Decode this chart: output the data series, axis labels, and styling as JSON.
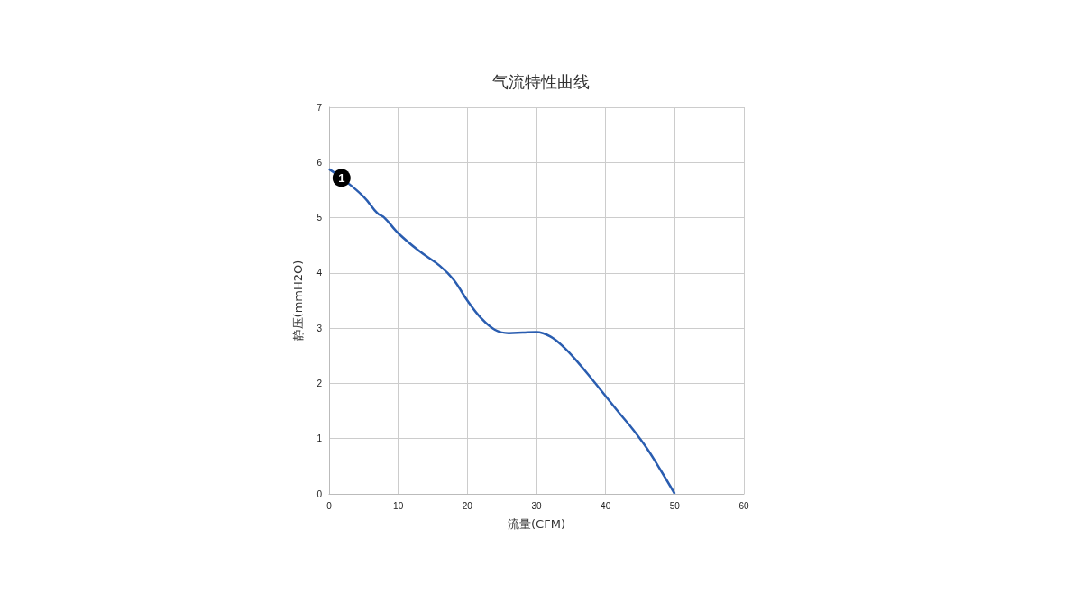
{
  "chart_data": {
    "type": "line",
    "title": "气流特性曲线",
    "xlabel": "流量(CFM)",
    "ylabel": "静压(mmH2O)",
    "x": [
      0,
      2,
      5,
      7,
      8,
      10,
      13,
      16,
      18,
      20,
      22,
      24,
      26,
      28,
      30,
      32,
      34,
      36,
      38,
      40,
      42,
      44,
      46,
      48,
      50
    ],
    "series": [
      {
        "color": "#2a5db0",
        "values": [
          5.88,
          5.7,
          5.38,
          5.08,
          5.0,
          4.72,
          4.4,
          4.13,
          3.88,
          3.5,
          3.18,
          2.97,
          2.91,
          2.92,
          2.93,
          2.85,
          2.65,
          2.38,
          2.08,
          1.77,
          1.46,
          1.16,
          0.82,
          0.42,
          0
        ]
      }
    ],
    "annotations": [
      {
        "text": "1",
        "x": 1.8,
        "y": 5.72
      }
    ],
    "xlim": [
      0,
      60
    ],
    "xticks": [
      0,
      10,
      20,
      30,
      40,
      50,
      60
    ],
    "ylim": [
      0,
      7
    ],
    "yticks": [
      0,
      1,
      2,
      3,
      4,
      5,
      6,
      7
    ],
    "grid": true,
    "marker": "none",
    "line_style": "solid"
  }
}
